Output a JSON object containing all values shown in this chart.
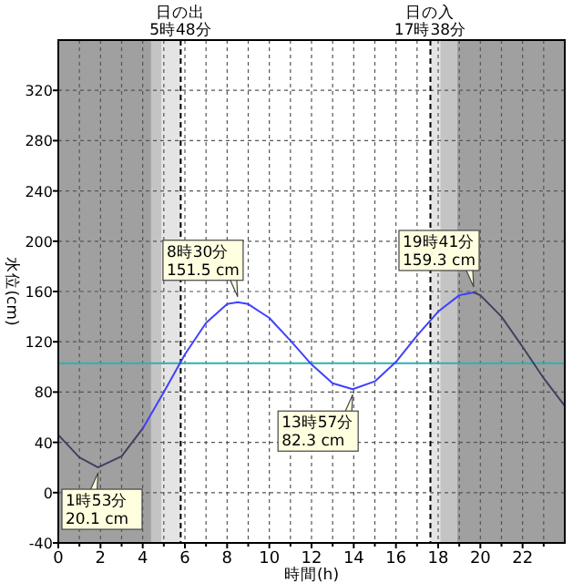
{
  "chart_data": {
    "type": "line",
    "xlabel": "時間(h)",
    "ylabel": "水位(cm)",
    "xlim": [
      0,
      24
    ],
    "ylim": [
      -40,
      360
    ],
    "xticks": [
      0,
      {
        "value": 1,
        "label": null
      },
      2,
      {
        "value": 3,
        "label": null
      },
      4,
      {
        "value": 5,
        "label": null
      },
      6,
      {
        "value": 7,
        "label": null
      },
      8,
      {
        "value": 9,
        "label": null
      },
      10,
      {
        "value": 11,
        "label": null
      },
      12,
      {
        "value": 13,
        "label": null
      },
      14,
      {
        "value": 15,
        "label": null
      },
      16,
      {
        "value": 17,
        "label": null
      },
      18,
      {
        "value": 19,
        "label": null
      },
      20,
      {
        "value": 21,
        "label": null
      },
      22,
      {
        "value": 23,
        "label": null
      }
    ],
    "yticks": [
      -40,
      0,
      40,
      80,
      120,
      160,
      200,
      240,
      280,
      320
    ],
    "grid": true,
    "line_style": "solid",
    "marker": "none",
    "series": [
      {
        "color": "#404060",
        "x": [
          0,
          1,
          1.883,
          3,
          4
        ],
        "values": [
          46,
          28,
          20.1,
          29,
          51
        ]
      },
      {
        "color": "#4040ff",
        "x": [
          4,
          5,
          6,
          7,
          8,
          8.5,
          9,
          10,
          11,
          12,
          13,
          13.95,
          15,
          16,
          17,
          18,
          19,
          19.683
        ],
        "values": [
          51,
          80,
          110,
          135,
          150,
          151.5,
          150,
          139,
          121,
          102,
          87,
          82.3,
          88.5,
          104,
          125,
          144,
          157,
          159.3
        ]
      },
      {
        "color": "#404060",
        "x": [
          19.683,
          20,
          21,
          22,
          23,
          24
        ],
        "values": [
          159.3,
          157,
          140,
          116,
          91,
          69
        ]
      }
    ],
    "bands": [
      {
        "axis": "x",
        "from": 0,
        "to": 4.4,
        "color": "#a0a0a0"
      },
      {
        "axis": "x",
        "from": 4.4,
        "to": 4.9,
        "color": "#c4c4c4"
      },
      {
        "axis": "x",
        "from": 4.9,
        "to": 5.8,
        "color": "#e4e4e4"
      },
      {
        "axis": "x",
        "from": 17.633,
        "to": 18.1,
        "color": "#e4e4e4"
      },
      {
        "axis": "x",
        "from": 18.1,
        "to": 18.9,
        "color": "#c4c4c4"
      },
      {
        "axis": "x",
        "from": 18.9,
        "to": 24,
        "color": "#a0a0a0"
      }
    ],
    "ref_lines": [
      {
        "axis": "x",
        "value": 5.8,
        "label": "日の出\n5時48分",
        "color": "#000000",
        "line_style": "dashed"
      },
      {
        "axis": "x",
        "value": 17.633,
        "label": "日の入\n17時38分",
        "color": "#000000",
        "line_style": "dashed"
      },
      {
        "axis": "y",
        "value": 103,
        "color": "#30b0b0",
        "line_style": "solid"
      }
    ],
    "annotations": [
      {
        "text": "1時53分\n20.1 cm",
        "x": 1.883,
        "y": 20.1
      },
      {
        "text": "8時30分\n151.5 cm",
        "x": 8.5,
        "y": 151.5
      },
      {
        "text": "13時57分\n82.3 cm",
        "x": 13.95,
        "y": 82.3
      },
      {
        "text": "19時41分\n159.3 cm",
        "x": 19.683,
        "y": 159.3
      }
    ]
  }
}
